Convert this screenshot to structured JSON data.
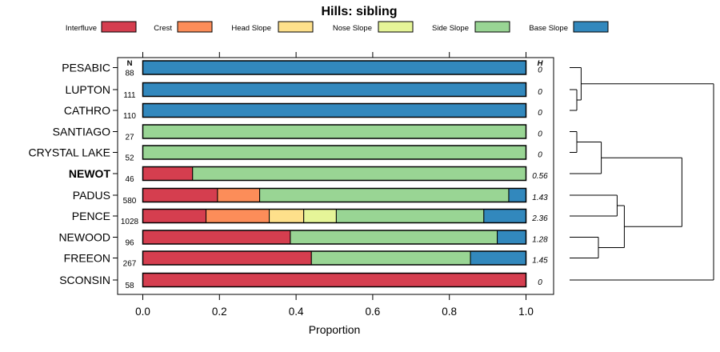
{
  "chart_data": {
    "type": "bar",
    "orientation": "horizontal",
    "stacked": true,
    "title": "Hills: sibling",
    "xlabel": "Proportion",
    "xlim": [
      0,
      1
    ],
    "xticks": [
      "0.0",
      "0.2",
      "0.4",
      "0.6",
      "0.8",
      "1.0"
    ],
    "xtick_values": [
      0,
      0.2,
      0.4,
      0.6,
      0.8,
      1.0
    ],
    "n_header": "N",
    "h_header": "H",
    "legend": [
      {
        "name": "Interfluve",
        "color": "#D53E4F"
      },
      {
        "name": "Crest",
        "color": "#FC8D59"
      },
      {
        "name": "Head Slope",
        "color": "#FEE08B"
      },
      {
        "name": "Nose Slope",
        "color": "#E6F598"
      },
      {
        "name": "Side Slope",
        "color": "#99D594"
      },
      {
        "name": "Base Slope",
        "color": "#3288BD"
      }
    ],
    "categories": [
      {
        "name": "PESABIC",
        "n": "88",
        "h": "0",
        "bold": false,
        "values": [
          0,
          0,
          0,
          0,
          0,
          1.0
        ]
      },
      {
        "name": "LUPTON",
        "n": "111",
        "h": "0",
        "bold": false,
        "values": [
          0,
          0,
          0,
          0,
          0,
          1.0
        ]
      },
      {
        "name": "CATHRO",
        "n": "110",
        "h": "0",
        "bold": false,
        "values": [
          0,
          0,
          0,
          0,
          0,
          1.0
        ]
      },
      {
        "name": "SANTIAGO",
        "n": "27",
        "h": "0",
        "bold": false,
        "values": [
          0,
          0,
          0,
          0,
          1.0,
          0
        ]
      },
      {
        "name": "CRYSTAL LAKE",
        "n": "52",
        "h": "0",
        "bold": false,
        "values": [
          0,
          0,
          0,
          0,
          1.0,
          0
        ]
      },
      {
        "name": "NEWOT",
        "n": "46",
        "h": "0.56",
        "bold": true,
        "values": [
          0.13,
          0,
          0,
          0,
          0.87,
          0
        ]
      },
      {
        "name": "PADUS",
        "n": "580",
        "h": "1.43",
        "bold": false,
        "values": [
          0.195,
          0.11,
          0,
          0,
          0.65,
          0.045
        ]
      },
      {
        "name": "PENCE",
        "n": "1028",
        "h": "2.36",
        "bold": false,
        "values": [
          0.165,
          0.165,
          0.09,
          0.085,
          0.385,
          0.11
        ]
      },
      {
        "name": "NEWOOD",
        "n": "96",
        "h": "1.28",
        "bold": false,
        "values": [
          0.385,
          0,
          0,
          0,
          0.54,
          0.075
        ]
      },
      {
        "name": "FREEON",
        "n": "267",
        "h": "1.45",
        "bold": false,
        "values": [
          0.44,
          0,
          0,
          0,
          0.415,
          0.145
        ]
      },
      {
        "name": "SCONSIN",
        "n": "58",
        "h": "0",
        "bold": false,
        "values": [
          1.0,
          0,
          0,
          0,
          0,
          0
        ]
      }
    ],
    "dendrogram": {
      "merges": [
        {
          "a": "LUPTON",
          "b": "CATHRO",
          "height": 0.05
        },
        {
          "a": "PESABIC",
          "b": [
            "LUPTON",
            "CATHRO"
          ],
          "height": 0.08
        },
        {
          "a": "SANTIAGO",
          "b": "CRYSTAL LAKE",
          "height": 0.05
        },
        {
          "a": "NEWOT",
          "b": [
            "SANTIAGO",
            "CRYSTAL LAKE"
          ],
          "height": 0.22
        },
        {
          "a": "PADUS",
          "b": "PENCE",
          "height": 0.33
        },
        {
          "a": "NEWOOD",
          "b": "FREEON",
          "height": 0.2
        },
        {
          "a": [
            "PADUS",
            "PENCE"
          ],
          "b": [
            "NEWOOD",
            "FREEON"
          ],
          "height": 0.38
        },
        {
          "a": [
            "NEWOT",
            "SANTIAGO",
            "CRYSTAL LAKE"
          ],
          "b": [
            "PADUS",
            "PENCE",
            "NEWOOD",
            "FREEON"
          ],
          "height": 0.78
        },
        {
          "a": [
            "PESABIC",
            "LUPTON",
            "CATHRO"
          ],
          "b": [
            "SCONSIN"
          ],
          "height": 1.0
        }
      ]
    }
  }
}
